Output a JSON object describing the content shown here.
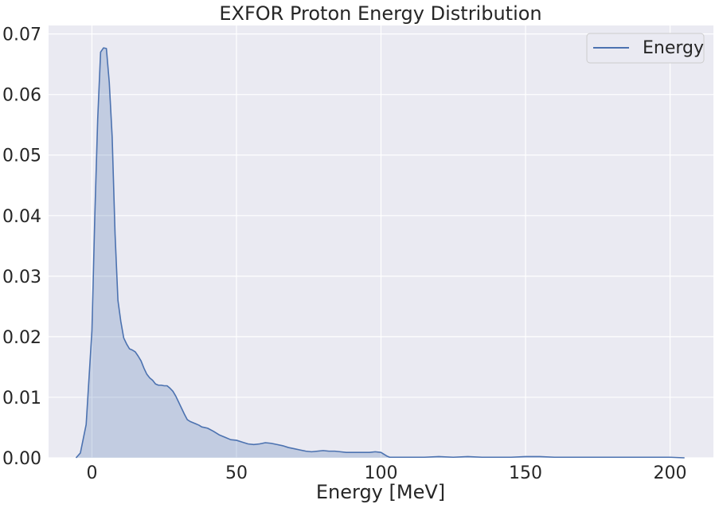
{
  "chart_data": {
    "type": "area",
    "title": "EXFOR Proton Energy Distribution",
    "xlabel": "Energy [MeV]",
    "ylabel": "",
    "xlim": [
      -15,
      215
    ],
    "ylim": [
      0,
      0.0714
    ],
    "xticks": [
      0,
      50,
      100,
      150,
      200
    ],
    "yticks": [
      0.0,
      0.01,
      0.02,
      0.03,
      0.04,
      0.05,
      0.06,
      0.07
    ],
    "xtick_labels": [
      "0",
      "50",
      "100",
      "150",
      "200"
    ],
    "ytick_labels": [
      "0.00",
      "0.01",
      "0.02",
      "0.03",
      "0.04",
      "0.05",
      "0.06",
      "0.07"
    ],
    "grid": true,
    "legend": {
      "position": "top-right",
      "entries": [
        "Energy"
      ]
    },
    "colors": {
      "line": "#4c72b0",
      "fill": "#4c72b0",
      "background": "#eaeaf2",
      "grid": "#ffffff",
      "text": "#262626"
    },
    "series": [
      {
        "name": "Energy",
        "x": [
          -5.5,
          -4,
          -2,
          0,
          1,
          2,
          3,
          4,
          5,
          6,
          7,
          8,
          9,
          10,
          11,
          12,
          13,
          14,
          15,
          16,
          17,
          18,
          19,
          20,
          21,
          22,
          23,
          24,
          25,
          26,
          27,
          28,
          29,
          30,
          31,
          32,
          33,
          34,
          35,
          36,
          37,
          38,
          39,
          40,
          42,
          44,
          46,
          48,
          50,
          52,
          54,
          56,
          58,
          60,
          62,
          64,
          66,
          68,
          70,
          72,
          74,
          76,
          78,
          80,
          82,
          84,
          86,
          88,
          90,
          92,
          94,
          96,
          98,
          100,
          101,
          102,
          103,
          104,
          106,
          108,
          110,
          115,
          120,
          125,
          130,
          135,
          140,
          145,
          150,
          155,
          160,
          165,
          170,
          175,
          180,
          185,
          190,
          195,
          200,
          205
        ],
        "y": [
          0.0,
          0.0008,
          0.0055,
          0.021,
          0.04,
          0.056,
          0.067,
          0.0677,
          0.0676,
          0.062,
          0.053,
          0.037,
          0.026,
          0.0225,
          0.0198,
          0.0188,
          0.018,
          0.0178,
          0.0175,
          0.0168,
          0.016,
          0.0148,
          0.0138,
          0.0132,
          0.0128,
          0.0122,
          0.012,
          0.012,
          0.0119,
          0.0119,
          0.0115,
          0.011,
          0.0102,
          0.0092,
          0.0082,
          0.0072,
          0.0063,
          0.006,
          0.0058,
          0.0056,
          0.0054,
          0.0051,
          0.005,
          0.0049,
          0.0044,
          0.0038,
          0.0034,
          0.003,
          0.0029,
          0.0026,
          0.0023,
          0.0022,
          0.0023,
          0.0025,
          0.0024,
          0.0022,
          0.002,
          0.0017,
          0.0015,
          0.0013,
          0.0011,
          0.001,
          0.0011,
          0.0012,
          0.0011,
          0.0011,
          0.001,
          0.0009,
          0.0009,
          0.0009,
          0.0009,
          0.0009,
          0.001,
          0.0009,
          0.0006,
          0.0003,
          0.0001,
          0.0001,
          0.0001,
          0.0001,
          0.0001,
          0.0001,
          0.0002,
          0.0001,
          0.0002,
          0.0001,
          0.0001,
          0.0001,
          0.0002,
          0.0002,
          0.0001,
          0.0001,
          0.0001,
          0.0001,
          0.0001,
          0.0001,
          0.0001,
          0.0001,
          0.0001,
          0.0
        ]
      }
    ]
  }
}
